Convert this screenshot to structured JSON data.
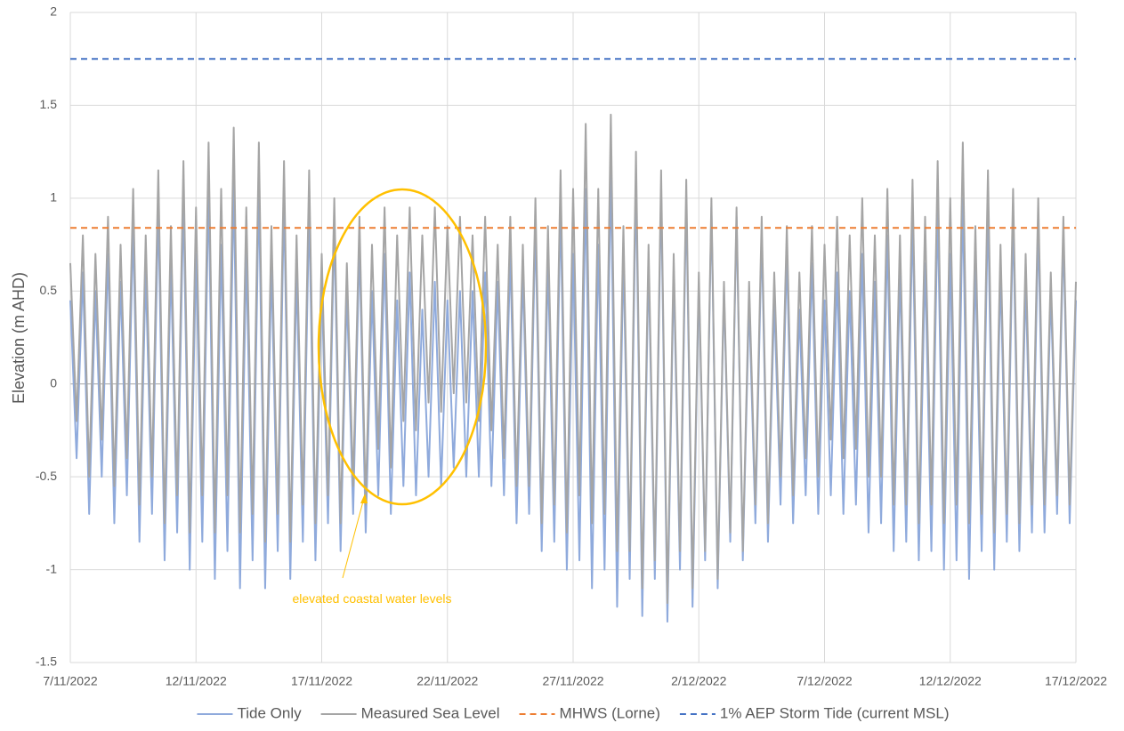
{
  "chart_data": {
    "type": "line",
    "y_label": "Elevation (m AHD)",
    "annotation": "elevated coastal water levels",
    "annotation_color": "#ffc000",
    "xlim": [
      0,
      40
    ],
    "xticks": [
      {
        "value": 0,
        "label": "7/11/2022"
      },
      {
        "value": 5,
        "label": "12/11/2022"
      },
      {
        "value": 10,
        "label": "17/11/2022"
      },
      {
        "value": 15,
        "label": "22/11/2022"
      },
      {
        "value": 20,
        "label": "27/11/2022"
      },
      {
        "value": 25,
        "label": "2/12/2022"
      },
      {
        "value": 30,
        "label": "7/12/2022"
      },
      {
        "value": 35,
        "label": "12/12/2022"
      },
      {
        "value": 40,
        "label": "17/12/2022"
      }
    ],
    "ylim": [
      -1.5,
      2
    ],
    "yticks": [
      -1.5,
      -1,
      -0.5,
      0,
      0.5,
      1,
      1.5,
      2
    ],
    "grid": true,
    "x": [
      0,
      0.25,
      0.5,
      0.75,
      1,
      1.25,
      1.5,
      1.75,
      2,
      2.25,
      2.5,
      2.75,
      3,
      3.25,
      3.5,
      3.75,
      4,
      4.25,
      4.5,
      4.75,
      5,
      5.25,
      5.5,
      5.75,
      6,
      6.25,
      6.5,
      6.75,
      7,
      7.25,
      7.5,
      7.75,
      8,
      8.25,
      8.5,
      8.75,
      9,
      9.25,
      9.5,
      9.75,
      10,
      10.25,
      10.5,
      10.75,
      11,
      11.25,
      11.5,
      11.75,
      12,
      12.25,
      12.5,
      12.75,
      13,
      13.25,
      13.5,
      13.75,
      14,
      14.25,
      14.5,
      14.75,
      15,
      15.25,
      15.5,
      15.75,
      16,
      16.25,
      16.5,
      16.75,
      17,
      17.25,
      17.5,
      17.75,
      18,
      18.25,
      18.5,
      18.75,
      19,
      19.25,
      19.5,
      19.75,
      20,
      20.25,
      20.5,
      20.75,
      21,
      21.25,
      21.5,
      21.75,
      22,
      22.25,
      22.5,
      22.75,
      23,
      23.25,
      23.5,
      23.75,
      24,
      24.25,
      24.5,
      24.75,
      25,
      25.25,
      25.5,
      25.75,
      26,
      26.25,
      26.5,
      26.75,
      27,
      27.25,
      27.5,
      27.75,
      28,
      28.25,
      28.5,
      28.75,
      29,
      29.25,
      29.5,
      29.75,
      30,
      30.25,
      30.5,
      30.75,
      31,
      31.25,
      31.5,
      31.75,
      32,
      32.25,
      32.5,
      32.75,
      33,
      33.25,
      33.5,
      33.75,
      34,
      34.25,
      34.5,
      34.75,
      35,
      35.25,
      35.5,
      35.75,
      36,
      36.25,
      36.5,
      36.75,
      37,
      37.25,
      37.5,
      37.75,
      38,
      38.25,
      38.5,
      38.75,
      39,
      39.25,
      39.5,
      39.75,
      40
    ],
    "series": [
      {
        "name": "Tide Only",
        "color": "#8faadc",
        "values": [
          0.45,
          -0.4,
          0.6,
          -0.7,
          0.5,
          -0.5,
          0.7,
          -0.75,
          0.55,
          -0.6,
          0.85,
          -0.85,
          0.6,
          -0.7,
          0.95,
          -0.95,
          0.65,
          -0.8,
          1.0,
          -1.0,
          0.7,
          -0.85,
          1.05,
          -1.05,
          0.75,
          -0.9,
          1.08,
          -1.1,
          0.7,
          -0.95,
          1.05,
          -1.1,
          0.65,
          -0.9,
          1.0,
          -1.05,
          0.6,
          -0.85,
          0.95,
          -0.95,
          0.55,
          -0.75,
          0.85,
          -0.9,
          0.5,
          -0.7,
          0.75,
          -0.8,
          0.5,
          -0.6,
          0.7,
          -0.7,
          0.45,
          -0.55,
          0.6,
          -0.6,
          0.4,
          -0.5,
          0.55,
          -0.55,
          0.45,
          -0.45,
          0.5,
          -0.5,
          0.5,
          -0.5,
          0.6,
          -0.55,
          0.55,
          -0.6,
          0.7,
          -0.75,
          0.6,
          -0.7,
          0.85,
          -0.9,
          0.65,
          -0.85,
          0.95,
          -1.0,
          0.7,
          -0.95,
          1.05,
          -1.1,
          0.75,
          -1.0,
          1.15,
          -1.2,
          0.7,
          -1.05,
          1.1,
          -1.25,
          0.65,
          -1.05,
          1.05,
          -1.28,
          0.6,
          -1.0,
          1.0,
          -1.2,
          0.55,
          -0.95,
          0.95,
          -1.1,
          0.5,
          -0.85,
          0.9,
          -0.95,
          0.45,
          -0.75,
          0.8,
          -0.85,
          0.45,
          -0.65,
          0.7,
          -0.75,
          0.4,
          -0.6,
          0.65,
          -0.7,
          0.45,
          -0.6,
          0.6,
          -0.7,
          0.5,
          -0.65,
          0.7,
          -0.8,
          0.55,
          -0.75,
          0.8,
          -0.9,
          0.6,
          -0.85,
          0.9,
          -0.95,
          0.65,
          -0.9,
          0.95,
          -1.0,
          0.7,
          -0.95,
          1.0,
          -1.05,
          0.65,
          -0.9,
          0.95,
          -1.0,
          0.6,
          -0.85,
          0.9,
          -0.9,
          0.55,
          -0.8,
          0.85,
          -0.8,
          0.5,
          -0.7,
          0.8,
          -0.75,
          0.45
        ]
      },
      {
        "name": "Measured Sea Level",
        "color": "#a5a5a5",
        "values": [
          0.65,
          -0.2,
          0.8,
          -0.5,
          0.7,
          -0.3,
          0.9,
          -0.55,
          0.75,
          -0.4,
          1.05,
          -0.65,
          0.8,
          -0.5,
          1.15,
          -0.75,
          0.85,
          -0.6,
          1.2,
          -0.8,
          0.95,
          -0.6,
          1.3,
          -0.8,
          1.05,
          -0.6,
          1.38,
          -0.8,
          0.95,
          -0.7,
          1.3,
          -0.85,
          0.85,
          -0.7,
          1.2,
          -0.85,
          0.8,
          -0.65,
          1.15,
          -0.75,
          0.7,
          -0.6,
          1.0,
          -0.75,
          0.65,
          -0.55,
          0.9,
          -0.65,
          0.75,
          -0.35,
          0.95,
          -0.45,
          0.8,
          -0.2,
          0.95,
          -0.25,
          0.8,
          -0.1,
          0.95,
          -0.15,
          0.85,
          -0.05,
          0.9,
          -0.1,
          0.8,
          -0.2,
          0.9,
          -0.25,
          0.75,
          -0.4,
          0.9,
          -0.55,
          0.75,
          -0.55,
          1.0,
          -0.75,
          0.85,
          -0.65,
          1.15,
          -0.8,
          1.05,
          -0.6,
          1.4,
          -0.75,
          1.05,
          -0.7,
          1.45,
          -0.9,
          0.85,
          -0.9,
          1.25,
          -1.1,
          0.75,
          -0.95,
          1.15,
          -1.18,
          0.7,
          -0.9,
          1.1,
          -1.1,
          0.6,
          -0.9,
          1.0,
          -1.05,
          0.55,
          -0.8,
          0.95,
          -0.9,
          0.55,
          -0.65,
          0.9,
          -0.75,
          0.6,
          -0.5,
          0.85,
          -0.6,
          0.6,
          -0.4,
          0.85,
          -0.5,
          0.75,
          -0.3,
          0.9,
          -0.4,
          0.8,
          -0.35,
          1.0,
          -0.5,
          0.8,
          -0.5,
          1.05,
          -0.65,
          0.8,
          -0.65,
          1.1,
          -0.75,
          0.9,
          -0.65,
          1.2,
          -0.75,
          1.0,
          -0.65,
          1.3,
          -0.75,
          0.85,
          -0.7,
          1.15,
          -0.8,
          0.75,
          -0.7,
          1.05,
          -0.75,
          0.7,
          -0.65,
          1.0,
          -0.65,
          0.6,
          -0.6,
          0.9,
          -0.65,
          0.55
        ]
      }
    ],
    "reference_lines": [
      {
        "name": "MHWS (Lorne)",
        "color": "#ed7d31",
        "value": 0.84
      },
      {
        "name": "1% AEP Storm Tide (current MSL)",
        "color": "#4472c4",
        "value": 1.75
      }
    ]
  }
}
